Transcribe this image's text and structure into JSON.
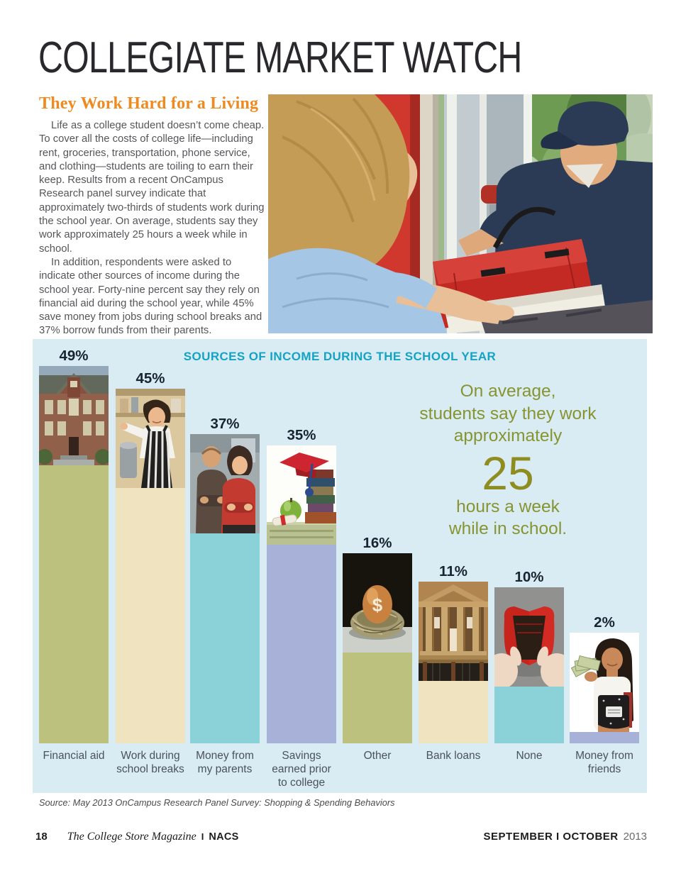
{
  "page": {
    "title": "COLLEGIATE MARKET WATCH",
    "article": {
      "heading": "They Work Hard for a Living",
      "para1": "Life as a college student doesn’t come cheap. To cover all the costs of college life—including rent, groceries, transportation, phone service, and clothing—students are toiling to earn their keep. Results from a recent OnCampus Research panel survey indicate that approximately two-thirds of students work during the school year. On average, students say they work approximately 25 hours a week while in school.",
      "para2": "In addition, respondents were asked to indicate other sources of income during the school year. Forty-nine percent say they rely on financial aid during the school year, while 45% save money from jobs during school breaks and 37% borrow funds from their parents."
    },
    "hero_photo": {
      "description": "Pizza delivery man in navy cap and polo handing a red insulated bag with a white pizza box to a blonde woman in a light blue top at a red door"
    },
    "callout": {
      "line1": "On average,",
      "line2": "students say they work",
      "line3": "approximately",
      "big_number": "25",
      "line4": "hours a week",
      "line5": "while in school."
    },
    "source": "Source: May 2013 OnCampus Research Panel Survey: Shopping & Spending Behaviors",
    "footer": {
      "page_number": "18",
      "magazine": "The College Store Magazine",
      "separator": "I",
      "org": "NACS",
      "issue": "SEPTEMBER I OCTOBER",
      "year": "2013"
    }
  },
  "chart_data": {
    "type": "bar",
    "title": "SOURCES OF INCOME DURING THE SCHOOL YEAR",
    "unit": "percent",
    "categories": [
      "Financial aid",
      "Work during school breaks",
      "Money from my parents",
      "Savings earned prior to college",
      "Other",
      "Bank loans",
      "None",
      "Money from friends"
    ],
    "values": [
      49,
      45,
      37,
      35,
      16,
      11,
      10,
      2
    ],
    "labels": [
      "49%",
      "45%",
      "37%",
      "35%",
      "16%",
      "11%",
      "10%",
      "2%"
    ],
    "bar_colors": [
      "#bcc27e",
      "#f0e4c0",
      "#8ad1d8",
      "#a8b2d8",
      "#bcc27e",
      "#f0e4c0",
      "#8ad1d8",
      "#a8b2d8"
    ],
    "photos": [
      "college-building",
      "cafe-worker",
      "parents-couple",
      "graduation-savings",
      "nest-egg",
      "bank-building",
      "empty-wallet",
      "friend-with-cash"
    ],
    "ylim": [
      0,
      50
    ],
    "legend": "none",
    "background_color": "#d9ecf3",
    "title_color": "#14a3c4",
    "callout_color": "#879431"
  }
}
